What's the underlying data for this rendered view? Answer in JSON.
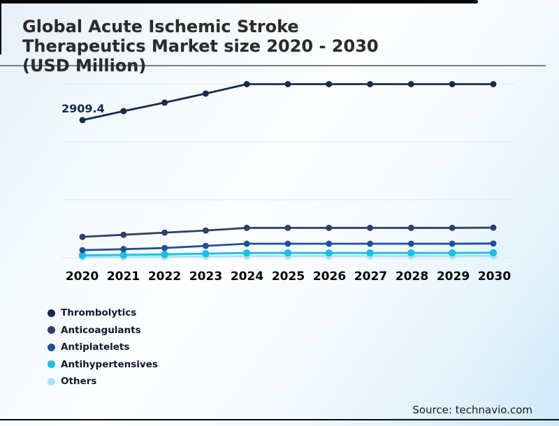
{
  "title": {
    "lines": [
      "Global Acute Ischemic Stroke",
      "Therapeutics Market size 2020 - 2030",
      "(USD Million)"
    ]
  },
  "chart_data": {
    "type": "line",
    "title": "Global Acute Ischemic Stroke Therapeutics Market size 2020 - 2030 (USD Million)",
    "categories": [
      "2020",
      "2021",
      "2022",
      "2023",
      "2024",
      "2025",
      "2026",
      "2027",
      "2028",
      "2029",
      "2030"
    ],
    "series": [
      {
        "name": "Thrombolytics",
        "color": "#172a4e",
        "values": [
          2909.4,
          3100,
          3280,
          3470,
          3670,
          3670,
          3670,
          3670,
          3670,
          3670,
          3670
        ]
      },
      {
        "name": "Anticoagulants",
        "color": "#2e3f6b",
        "values": [
          440,
          485,
          530,
          575,
          630,
          630,
          630,
          630,
          630,
          630,
          635
        ]
      },
      {
        "name": "Antiplatelets",
        "color": "#1d509c",
        "values": [
          160,
          180,
          205,
          250,
          295,
          295,
          295,
          295,
          295,
          295,
          300
        ]
      },
      {
        "name": "Antihypertensives",
        "color": "#17c0e9",
        "values": [
          50,
          60,
          70,
          85,
          100,
          100,
          100,
          100,
          100,
          100,
          105
        ]
      },
      {
        "name": "Others",
        "color": "#a8e3f6",
        "values": [
          10,
          15,
          20,
          28,
          37,
          37,
          37,
          37,
          37,
          37,
          40
        ]
      }
    ],
    "data_labels": [
      {
        "series": "Thrombolytics",
        "category": "2020",
        "value": "2909.4"
      }
    ],
    "ylim": [
      0,
      3750
    ],
    "grid": true,
    "gridline_count": 4,
    "legend_position": "bottom-left",
    "colors": {
      "gridline": "#e2e7eb",
      "title_rule": "#7c7c7c",
      "frame": "#060606",
      "data_label": "#13294d"
    }
  },
  "source": {
    "text": "Source: technavio.com"
  }
}
